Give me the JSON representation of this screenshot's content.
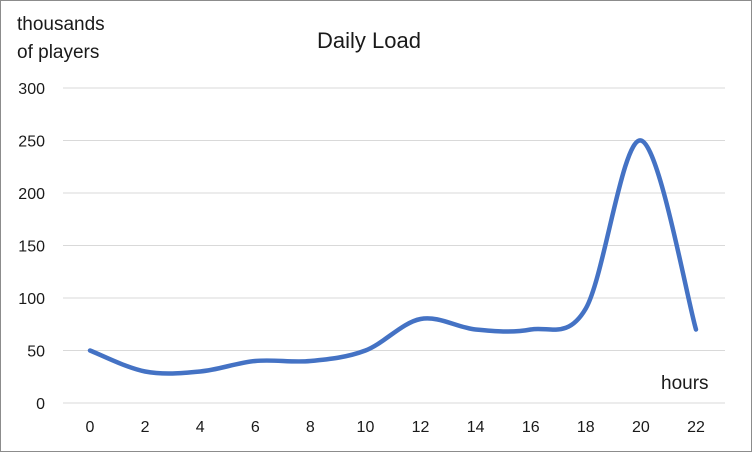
{
  "chart_data": {
    "type": "line",
    "title": "Daily Load",
    "xlabel": "hours",
    "ylabel": "thousands\nof players",
    "x": [
      0,
      2,
      4,
      6,
      8,
      10,
      12,
      14,
      16,
      18,
      20,
      22
    ],
    "series": [
      {
        "values": [
          50,
          30,
          30,
          40,
          40,
          50,
          80,
          70,
          70,
          90,
          250,
          70
        ]
      }
    ],
    "xticks": [
      "0",
      "2",
      "4",
      "6",
      "8",
      "10",
      "12",
      "14",
      "16",
      "18",
      "20",
      "22"
    ],
    "yticks": [
      "0",
      "50",
      "100",
      "150",
      "200",
      "250",
      "300"
    ],
    "ylim": [
      0,
      300
    ],
    "grid": "horizontal",
    "smooth": true,
    "legend": "none",
    "color": "#4472c4"
  }
}
